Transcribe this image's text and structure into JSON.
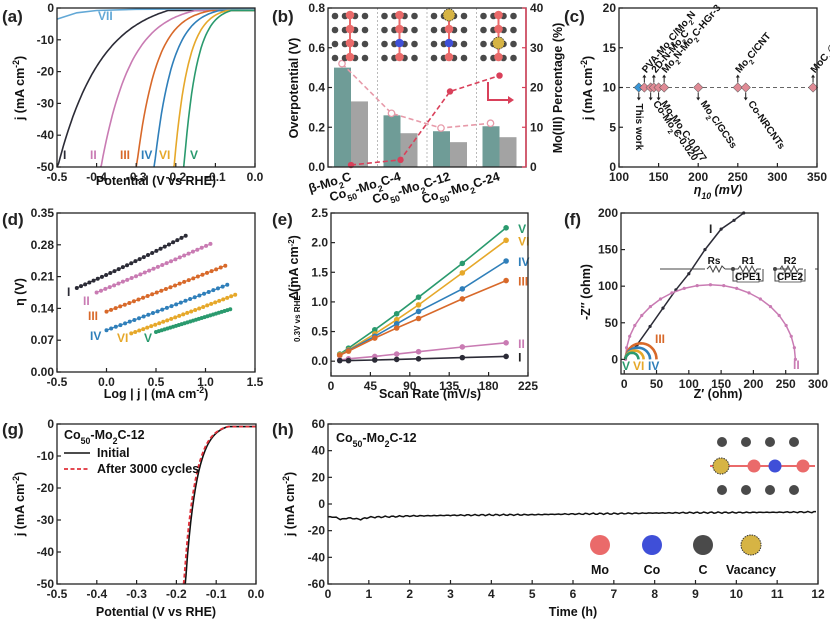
{
  "colors": {
    "I": "#2b2b36",
    "II": "#c97bb3",
    "III": "#d8692a",
    "IV": "#2f7fba",
    "V": "#2a9a6e",
    "VI": "#e6a82a",
    "VII": "#62a8d6",
    "bar_teal": "#6f9c97",
    "bar_gray": "#a3a3a3",
    "mo3": "#d9405a",
    "mo3_light": "#e79aa9",
    "diamond": "#e08a95",
    "this_work": "#3a96d6",
    "mo_atom": "#ea6a6a",
    "co_atom": "#3f4fd8",
    "c_atom": "#4a4a4a",
    "vacancy": "#d6b444"
  },
  "chart_data": [
    {
      "panel": "(a)",
      "type": "line",
      "xlabel": "Potential (V vs RHE)",
      "ylabel": "j (mA cm⁻²)",
      "xlim": [
        -0.5,
        0.0
      ],
      "ylim": [
        -50,
        0
      ],
      "xticks": [
        "-0.5",
        "-0.4",
        "-0.3",
        "-0.2",
        "-0.1",
        "0.0"
      ],
      "yticks": [
        "0",
        "-10",
        "-20",
        "-30",
        "-40",
        "-50"
      ],
      "series": [
        {
          "name": "I",
          "onset": -0.22,
          "at_minus50": -0.5,
          "shape": 0.11
        },
        {
          "name": "II",
          "onset": -0.15,
          "at_minus50": -0.39,
          "shape": 0.075
        },
        {
          "name": "III",
          "onset": -0.11,
          "at_minus50": -0.3,
          "shape": 0.05
        },
        {
          "name": "IV",
          "onset": -0.09,
          "at_minus50": -0.255,
          "shape": 0.045
        },
        {
          "name": "VI",
          "onset": -0.07,
          "at_minus50": -0.205,
          "shape": 0.035
        },
        {
          "name": "V",
          "onset": -0.06,
          "at_minus50": -0.18,
          "shape": 0.032
        },
        {
          "name": "VII",
          "points": [
            [
              -0.5,
              -3.5
            ],
            [
              -0.45,
              -1.5
            ],
            [
              -0.4,
              -0.8
            ],
            [
              -0.3,
              -0.4
            ],
            [
              0,
              -0.2
            ]
          ]
        }
      ],
      "annotations": [
        "I",
        "II",
        "III",
        "IV",
        "VI",
        "V",
        "VII"
      ]
    },
    {
      "panel": "(b)",
      "type": "bar",
      "categories": [
        "β-Mo₂C",
        "Co₅₀-Mo₂C-4",
        "Co₅₀-Mo₂C-12",
        "Co₅₀-Mo₂C-24"
      ],
      "ylabel": "Overpotential (V)",
      "y2label": "Mo(III) Percentage (%)",
      "ylim": [
        0,
        0.8
      ],
      "y2lim": [
        0,
        40
      ],
      "yticks": [
        "0.0",
        "0.2",
        "0.4",
        "0.6",
        "0.8"
      ],
      "y2ticks": [
        "0",
        "10",
        "20",
        "30",
        "40"
      ],
      "series": [
        {
          "name": "overpotential_teal",
          "values": [
            0.5,
            0.26,
            0.18,
            0.205
          ]
        },
        {
          "name": "overpotential_gray",
          "values": [
            0.33,
            0.17,
            0.125,
            0.15
          ]
        },
        {
          "name": "Mo(III) percentage",
          "axis": "right",
          "values": [
            0.5,
            1.8,
            19,
            23
          ]
        },
        {
          "name": "open circles",
          "axis": "right",
          "values": [
            26,
            13.5,
            9.8,
            11
          ]
        }
      ]
    },
    {
      "panel": "(c)",
      "type": "scatter",
      "xlabel": "η₁₀ (mV)",
      "ylabel": "j (mA cm⁻²)",
      "xlim": [
        100,
        350
      ],
      "ylim": [
        0,
        20
      ],
      "xticks": [
        "100",
        "150",
        "200",
        "250",
        "300",
        "350"
      ],
      "yticks": [
        "0",
        "5",
        "10",
        "15",
        "20"
      ],
      "reference_line": 10,
      "points": [
        {
          "x": 125,
          "label": "This work",
          "dir": "down",
          "highlight": true
        },
        {
          "x": 132,
          "label": "PVA-Mo₂C/Mo₂N",
          "dir": "up"
        },
        {
          "x": 140,
          "label": "Co-Mo₂C-0.020",
          "dir": "down"
        },
        {
          "x": 144,
          "label": "2D-N-Mo₂C",
          "dir": "up"
        },
        {
          "x": 150,
          "label": "Mo-Mo₂C-0.077",
          "dir": "down"
        },
        {
          "x": 157,
          "label": "Mo₂N-Mo₂C-HGr-3",
          "dir": "up"
        },
        {
          "x": 200,
          "label": "Mo₂C/GCSs",
          "dir": "down"
        },
        {
          "x": 250,
          "label": "Mo₂C/CNT",
          "dir": "up"
        },
        {
          "x": 260,
          "label": "Co-NRCNTs",
          "dir": "down"
        },
        {
          "x": 345,
          "label": "MoCₓ@SWNTs",
          "dir": "up"
        }
      ]
    },
    {
      "panel": "(d)",
      "type": "scatter",
      "xlabel": "Log | j | (mA cm⁻²)",
      "ylabel": "η (V)",
      "xlim": [
        -0.5,
        1.5
      ],
      "ylim": [
        0,
        0.35
      ],
      "xticks": [
        "-0.5",
        "0.0",
        "0.5",
        "1.0",
        "1.5"
      ],
      "yticks": [
        "0.00",
        "0.07",
        "0.14",
        "0.21",
        "0.28",
        "0.35"
      ],
      "series": [
        {
          "name": "I",
          "x0": -0.3,
          "x1": 0.8,
          "y0": 0.185,
          "y1": 0.3,
          "curve": 0.012
        },
        {
          "name": "II",
          "x0": -0.1,
          "x1": 1.05,
          "y0": 0.175,
          "y1": 0.282,
          "curve": 0.005
        },
        {
          "name": "III",
          "x0": 0.0,
          "x1": 1.2,
          "y0": 0.133,
          "y1": 0.234,
          "curve": 0.003
        },
        {
          "name": "IV",
          "x0": 0.0,
          "x1": 1.22,
          "y0": 0.092,
          "y1": 0.192,
          "curve": 0.003
        },
        {
          "name": "VI",
          "x0": 0.25,
          "x1": 1.3,
          "y0": 0.085,
          "y1": 0.17,
          "curve": 0.003
        },
        {
          "name": "V",
          "x0": 0.5,
          "x1": 1.25,
          "y0": 0.088,
          "y1": 0.138,
          "curve": 0.0
        }
      ]
    },
    {
      "panel": "(e)",
      "type": "line",
      "xlabel": "Scan Rate (mV/s)",
      "ylabel": "Δ j 0.3V vs RHE (mA cm⁻²)",
      "xlim": [
        0,
        225
      ],
      "ylim": [
        -0.25,
        2.5
      ],
      "xticks": [
        "0",
        "45",
        "90",
        "135",
        "180",
        "225"
      ],
      "yticks": [
        "0.0",
        "0.5",
        "1.0",
        "1.5",
        "2.0",
        "2.5"
      ],
      "x": [
        10,
        20,
        50,
        75,
        100,
        150,
        200
      ],
      "series": [
        {
          "name": "V",
          "values": [
            0.12,
            0.22,
            0.53,
            0.8,
            1.08,
            1.65,
            2.25
          ]
        },
        {
          "name": "VI",
          "values": [
            0.11,
            0.19,
            0.46,
            0.7,
            0.95,
            1.49,
            2.04
          ]
        },
        {
          "name": "IV",
          "values": [
            0.1,
            0.18,
            0.42,
            0.63,
            0.84,
            1.22,
            1.69
          ]
        },
        {
          "name": "III",
          "values": [
            0.1,
            0.17,
            0.39,
            0.56,
            0.72,
            1.05,
            1.36
          ]
        },
        {
          "name": "II",
          "values": [
            0.02,
            0.04,
            0.08,
            0.12,
            0.16,
            0.24,
            0.31
          ]
        },
        {
          "name": "I",
          "values": [
            0.01,
            0.01,
            0.02,
            0.03,
            0.04,
            0.06,
            0.08
          ]
        }
      ]
    },
    {
      "panel": "(f)",
      "type": "line",
      "xlabel": "Z′ (ohm)",
      "ylabel": "-Z″ (ohm)",
      "xlim": [
        -5,
        300
      ],
      "ylim": [
        -20,
        200
      ],
      "xticks": [
        "0",
        "50",
        "100",
        "150",
        "200",
        "250",
        "300"
      ],
      "yticks": [
        "0",
        "50",
        "100",
        "150",
        "200"
      ],
      "circuit_labels": [
        "Rs",
        "R1",
        "CPE1",
        "R2",
        "CPE2"
      ],
      "series": [
        {
          "name": "I",
          "type": "line",
          "points": [
            [
              2,
              2
            ],
            [
              20,
              20
            ],
            [
              40,
              45
            ],
            [
              60,
              70
            ],
            [
              80,
              95
            ],
            [
              100,
              117
            ],
            [
              125,
              150
            ],
            [
              150,
              178
            ],
            [
              170,
              190
            ],
            [
              185,
              200
            ]
          ]
        },
        {
          "name": "II",
          "type": "arc",
          "r0": 2,
          "r1": 265,
          "peak": 102
        },
        {
          "name": "III",
          "type": "arc",
          "r0": 2,
          "r1": 50,
          "peak": 22
        },
        {
          "name": "IV",
          "type": "arc",
          "r0": 2,
          "r1": 40,
          "peak": 16
        },
        {
          "name": "VI",
          "type": "arc",
          "r0": 2,
          "r1": 30,
          "peak": 12
        },
        {
          "name": "V",
          "type": "arc",
          "r0": 2,
          "r1": 22,
          "peak": 9
        }
      ]
    },
    {
      "panel": "(g)",
      "type": "line",
      "title": "Co₅₀-Mo₂C-12",
      "xlabel": "Potential (V vs RHE)",
      "ylabel": "j (mA cm⁻²)",
      "xlim": [
        -0.5,
        0.0
      ],
      "ylim": [
        -50,
        0
      ],
      "xticks": [
        "-0.5",
        "-0.4",
        "-0.3",
        "-0.2",
        "-0.1",
        "0.0"
      ],
      "yticks": [
        "0",
        "-10",
        "-20",
        "-30",
        "-40",
        "-50"
      ],
      "legend": [
        "Initial",
        "After 3000 cycles"
      ],
      "series": [
        {
          "name": "Initial",
          "onset": -0.07,
          "at_minus50": -0.178,
          "shape": 0.028
        },
        {
          "name": "After 3000 cycles",
          "onset": -0.07,
          "at_minus50": -0.182,
          "shape": 0.028
        }
      ]
    },
    {
      "panel": "(h)",
      "type": "line",
      "title": "Co₅₀-Mo₂C-12",
      "xlabel": "Time (h)",
      "ylabel": "j (mA cm⁻²)",
      "xlim": [
        0,
        12
      ],
      "ylim": [
        -60,
        60
      ],
      "xticks": [
        "0",
        "1",
        "2",
        "3",
        "4",
        "5",
        "6",
        "7",
        "8",
        "9",
        "10",
        "11",
        "12"
      ],
      "yticks": [
        "60",
        "40",
        "20",
        "0",
        "-20",
        "-40",
        "-60"
      ],
      "series": [
        {
          "name": "Co50-Mo2C-12",
          "points": [
            [
              0,
              -9.5
            ],
            [
              0.2,
              -10
            ],
            [
              0.3,
              -11.5
            ],
            [
              0.5,
              -10.5
            ],
            [
              0.8,
              -11.5
            ],
            [
              1,
              -10
            ],
            [
              1.5,
              -9.5
            ],
            [
              2,
              -9
            ],
            [
              3,
              -8.5
            ],
            [
              4,
              -8.2
            ],
            [
              5,
              -8
            ],
            [
              6,
              -7.5
            ],
            [
              7,
              -7.2
            ],
            [
              8,
              -6.8
            ],
            [
              9,
              -6.5
            ],
            [
              10,
              -6.4
            ],
            [
              11,
              -6.2
            ],
            [
              12,
              -6
            ]
          ]
        }
      ],
      "legend_atoms": [
        "Mo",
        "Co",
        "C",
        "Vacancy"
      ]
    }
  ],
  "panels": {
    "a": {
      "letter": "(a)"
    },
    "b": {
      "letter": "(b)"
    },
    "c": {
      "letter": "(c)"
    },
    "d": {
      "letter": "(d)"
    },
    "e": {
      "letter": "(e)"
    },
    "f": {
      "letter": "(f)"
    },
    "g": {
      "letter": "(g)"
    },
    "h": {
      "letter": "(h)"
    }
  }
}
